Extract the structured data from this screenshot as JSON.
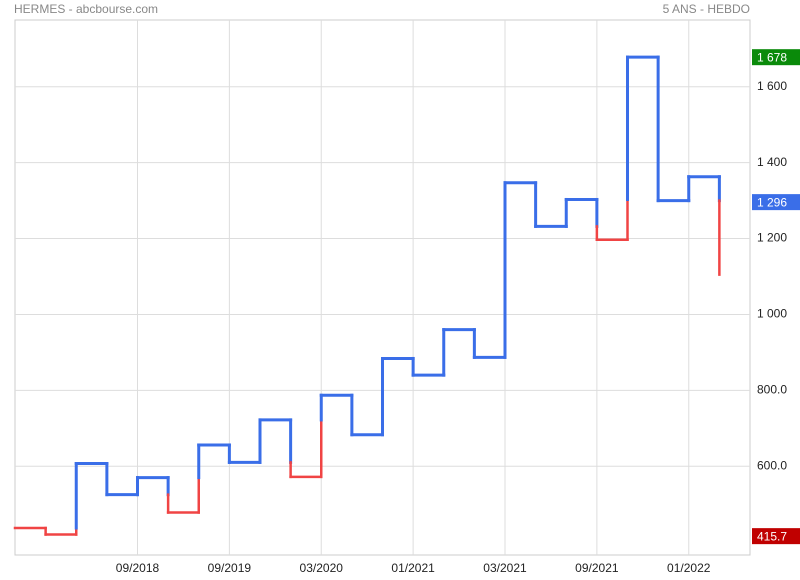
{
  "chart_data": {
    "type": "kagi",
    "title": "HERMES - abcbourse.com",
    "subtitle": "5 ANS - HEBDO",
    "values": [
      437,
      420,
      607,
      525,
      570,
      478,
      656,
      610,
      722,
      572,
      787,
      683,
      884,
      840,
      960,
      887,
      1347,
      1232,
      1303,
      1197,
      1678,
      1300,
      1363,
      1105
    ],
    "up_color": "#3a6ee8",
    "down_color": "#f04444",
    "xlim": [
      0,
      24
    ],
    "xticks": [
      {
        "value": 4,
        "label": "09/2018"
      },
      {
        "value": 7,
        "label": "09/2019"
      },
      {
        "value": 10,
        "label": "03/2020"
      },
      {
        "value": 13,
        "label": "01/2021"
      },
      {
        "value": 16,
        "label": "03/2021"
      },
      {
        "value": 19,
        "label": "09/2021"
      },
      {
        "value": 22,
        "label": "01/2022"
      }
    ],
    "ylim": [
      366,
      1776
    ],
    "yticks": [
      {
        "value": 600,
        "label": "600.0"
      },
      {
        "value": 800,
        "label": "800.0"
      },
      {
        "value": 1000,
        "label": "1 000"
      },
      {
        "value": 1200,
        "label": "1 200"
      },
      {
        "value": 1400,
        "label": "1 400"
      },
      {
        "value": 1600,
        "label": "1 600"
      }
    ],
    "grid": true,
    "markers": [
      {
        "value": 1678,
        "label": "1 678",
        "color": "#0a8a0a"
      },
      {
        "value": 1296,
        "label": "1 296",
        "color": "#3a6ee8"
      },
      {
        "value": 415.7,
        "label": "415.7",
        "color": "#c00000"
      }
    ]
  }
}
